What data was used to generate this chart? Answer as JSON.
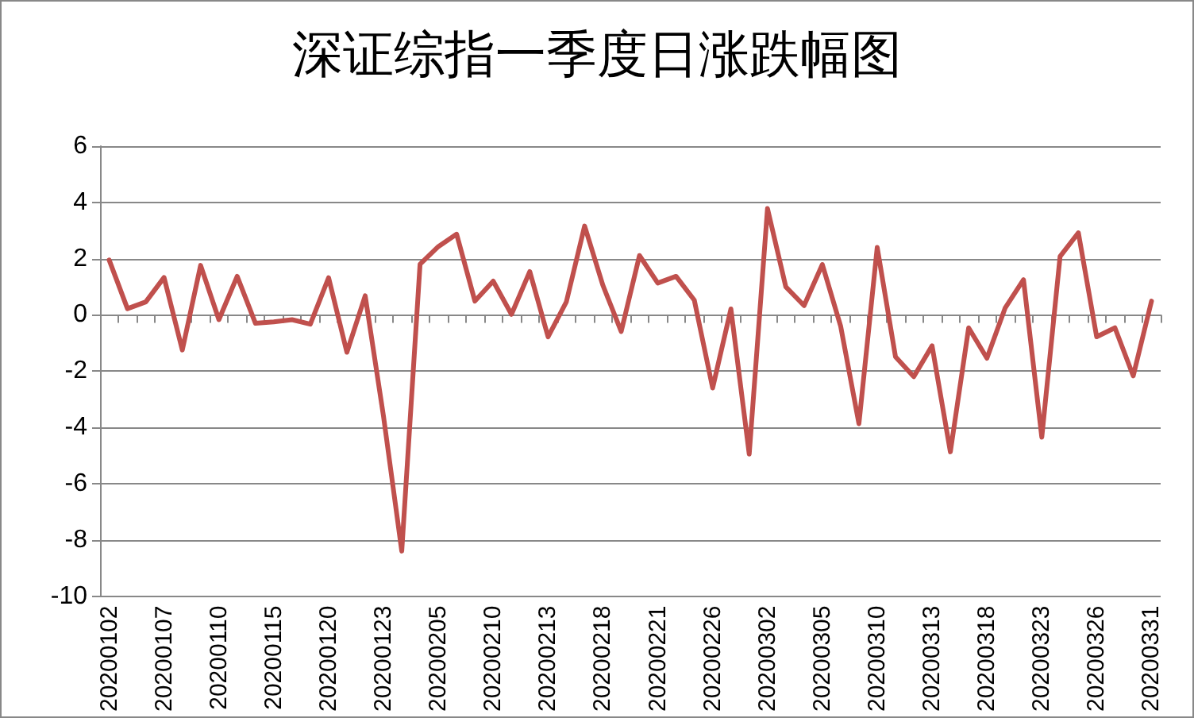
{
  "chart_data": {
    "type": "line",
    "title": "深证综指一季度日涨跌幅图",
    "categories": [
      "20200102",
      null,
      null,
      "20200107",
      null,
      null,
      "20200110",
      null,
      null,
      "20200115",
      null,
      null,
      "20200120",
      null,
      null,
      "20200123",
      null,
      null,
      "20200205",
      null,
      null,
      "20200210",
      null,
      null,
      "20200213",
      null,
      null,
      "20200218",
      null,
      null,
      "20200221",
      null,
      null,
      "20200226",
      null,
      null,
      "20200302",
      null,
      null,
      "20200305",
      null,
      null,
      "20200310",
      null,
      null,
      "20200313",
      null,
      null,
      "20200318",
      null,
      null,
      "20200323",
      null,
      null,
      "20200326",
      null,
      null,
      "20200331"
    ],
    "series": [
      {
        "color": "#c0504d",
        "values": [
          1.95,
          0.22,
          0.46,
          1.33,
          -1.25,
          1.76,
          -0.17,
          1.37,
          -0.3,
          -0.25,
          -0.17,
          -0.33,
          1.32,
          -1.33,
          0.68,
          -3.6,
          -8.4,
          1.8,
          2.43,
          2.87,
          0.49,
          1.2,
          0.02,
          1.54,
          -0.78,
          0.46,
          3.16,
          1.05,
          -0.59,
          2.11,
          1.13,
          1.37,
          0.52,
          -2.6,
          0.21,
          -4.95,
          3.78,
          1.0,
          0.33,
          1.79,
          -0.4,
          -3.87,
          2.4,
          -1.49,
          -2.2,
          -1.1,
          -4.87,
          -0.46,
          -1.54,
          0.25,
          1.25,
          -4.35,
          2.08,
          2.92,
          -0.78,
          -0.46,
          -2.17,
          0.49
        ]
      }
    ],
    "ylim": [
      -10,
      6
    ],
    "yticks": [
      -10,
      -8,
      -6,
      -4,
      -2,
      0,
      2,
      4,
      6
    ],
    "grid": "y",
    "marker": "none",
    "line_style": "solid"
  }
}
